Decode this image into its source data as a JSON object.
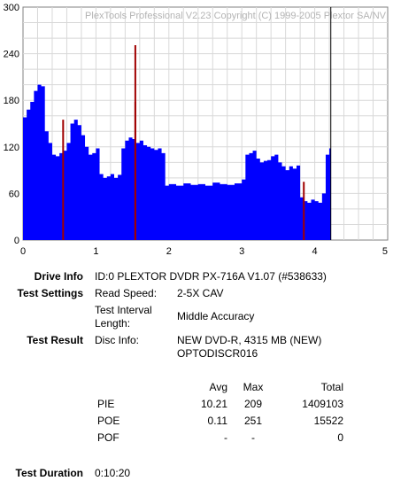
{
  "chart_data": {
    "type": "area",
    "title": "PlexTools Professional V2.23 Copyright (C) 1999-2005 Plextor SA/NV",
    "xlabel": "",
    "ylabel": "",
    "xlim": [
      0,
      5
    ],
    "ylim": [
      0,
      300
    ],
    "x_ticks": [
      "0",
      "1",
      "2",
      "3",
      "4",
      "5"
    ],
    "y_ticks": [
      "0",
      "60",
      "120",
      "180",
      "240",
      "300"
    ],
    "grid": true,
    "end_marker_x": 4.22,
    "series": [
      {
        "color": "#0000ff",
        "x": [
          0.0,
          0.05,
          0.1,
          0.15,
          0.2,
          0.25,
          0.3,
          0.35,
          0.4,
          0.45,
          0.5,
          0.55,
          0.6,
          0.65,
          0.7,
          0.75,
          0.8,
          0.85,
          0.9,
          0.95,
          1.0,
          1.05,
          1.1,
          1.15,
          1.2,
          1.25,
          1.3,
          1.35,
          1.4,
          1.45,
          1.5,
          1.55,
          1.6,
          1.65,
          1.7,
          1.75,
          1.8,
          1.85,
          1.9,
          1.95,
          2.0,
          2.1,
          2.2,
          2.3,
          2.4,
          2.5,
          2.6,
          2.7,
          2.8,
          2.9,
          3.0,
          3.05,
          3.1,
          3.15,
          3.2,
          3.25,
          3.3,
          3.35,
          3.4,
          3.45,
          3.5,
          3.55,
          3.6,
          3.65,
          3.7,
          3.75,
          3.8,
          3.85,
          3.9,
          3.95,
          4.0,
          4.05,
          4.1,
          4.15,
          4.2,
          4.22
        ],
        "values": [
          158,
          168,
          178,
          192,
          200,
          198,
          140,
          125,
          110,
          108,
          112,
          115,
          125,
          150,
          155,
          148,
          135,
          120,
          110,
          112,
          118,
          85,
          80,
          82,
          85,
          80,
          84,
          118,
          128,
          132,
          130,
          125,
          128,
          122,
          120,
          118,
          116,
          118,
          112,
          70,
          72,
          70,
          73,
          71,
          72,
          70,
          74,
          72,
          71,
          73,
          78,
          110,
          112,
          115,
          105,
          100,
          102,
          103,
          108,
          110,
          100,
          95,
          90,
          95,
          92,
          96,
          55,
          50,
          48,
          52,
          50,
          48,
          60,
          110,
          118,
          0
        ]
      },
      {
        "color": "#a00000",
        "x": [
          0.55,
          0.55,
          1.54,
          1.54,
          1.54,
          1.54,
          3.85,
          3.85
        ],
        "values": [
          0,
          155,
          0,
          251,
          0,
          178,
          0,
          75
        ]
      }
    ]
  },
  "info": {
    "drive_label": "Drive Info",
    "drive_value": "ID:0 PLEXTOR DVDR PX-716A V1.07 (#538633)",
    "settings_label": "Test Settings",
    "read_speed_label": "Read Speed:",
    "read_speed_value": "2-5X CAV",
    "interval_label_1": "Test Interval",
    "interval_label_2": "Length:",
    "interval_value": "Middle Accuracy",
    "result_label": "Test Result",
    "disc_info_label": "Disc Info:",
    "disc_info_line1": "NEW DVD-R, 4315 MB (NEW)",
    "disc_info_line2": "OPTODISCR016",
    "duration_label": "Test Duration",
    "duration_value": "0:10:20"
  },
  "stats": {
    "headers": [
      "Avg",
      "Max",
      "Total"
    ],
    "rows": [
      {
        "name": "PIE",
        "avg": "10.21",
        "max": "209",
        "total": "1409103"
      },
      {
        "name": "POE",
        "avg": "0.11",
        "max": "251",
        "total": "15522"
      },
      {
        "name": "POF",
        "avg": "-",
        "max": "-",
        "total": "0"
      }
    ]
  }
}
